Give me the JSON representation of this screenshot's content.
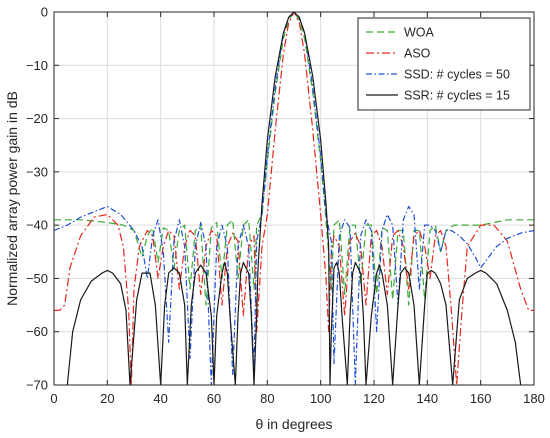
{
  "chart_data": {
    "type": "line",
    "xlabel": "θ in degrees",
    "ylabel": "Normalized array power gain in dB",
    "xlim": [
      0,
      180
    ],
    "ylim": [
      -70,
      0
    ],
    "xticks": [
      0,
      20,
      40,
      60,
      80,
      100,
      120,
      140,
      160,
      180
    ],
    "yticks": [
      0,
      -10,
      -20,
      -30,
      -40,
      -50,
      -60,
      -70
    ],
    "grid": true,
    "legend_position": "top-right",
    "series": [
      {
        "name": "WOA",
        "color": "#3aaa35",
        "dash": "dashed",
        "x": [
          0,
          10,
          20,
          26,
          30,
          33,
          35,
          37,
          39,
          41,
          43,
          45,
          47,
          49,
          51,
          53,
          55,
          57,
          59,
          61,
          63,
          65,
          67,
          69,
          71,
          73,
          75,
          76,
          78,
          80,
          83,
          86,
          88,
          90,
          92,
          94,
          97,
          100,
          102,
          104,
          105,
          107,
          109,
          111,
          113,
          115,
          117,
          119,
          121,
          123,
          125,
          127,
          129,
          131,
          133,
          135,
          137,
          139,
          141,
          143,
          145,
          147,
          150,
          154,
          160,
          170,
          180
        ],
        "y": [
          -39,
          -39,
          -39.5,
          -40,
          -41,
          -46,
          -42,
          -40.5,
          -47,
          -40.5,
          -41,
          -48,
          -41,
          -40,
          -52,
          -41,
          -40,
          -55,
          -40.5,
          -39.5,
          -50,
          -40,
          -39,
          -50,
          -40,
          -39,
          -52,
          -40,
          -38,
          -28,
          -15,
          -5,
          -1.5,
          0,
          -1.5,
          -5,
          -15,
          -28,
          -39,
          -52,
          -40,
          -39,
          -53,
          -40,
          -40,
          -51,
          -40,
          -40,
          -53,
          -40.5,
          -41,
          -54,
          -41,
          -41,
          -55,
          -41,
          -41,
          -54,
          -41,
          -40,
          -45,
          -41,
          -40,
          -40,
          -40,
          -39,
          -39
        ]
      },
      {
        "name": "ASO",
        "color": "#e6261f",
        "dash": "dashdot",
        "x": [
          0,
          2,
          4,
          6,
          10,
          15,
          20,
          24,
          26,
          28,
          29,
          30,
          32,
          35,
          37,
          39,
          41,
          43,
          45,
          47,
          49,
          51,
          53,
          55,
          57,
          59,
          61,
          63,
          65,
          67,
          69,
          71,
          73,
          75,
          76,
          78,
          80,
          83,
          86,
          88,
          90,
          92,
          94,
          97,
          100,
          102,
          103,
          104,
          105,
          107,
          109,
          111,
          113,
          115,
          117,
          119,
          121,
          123,
          125,
          127,
          129,
          131,
          133,
          135,
          137,
          139,
          141,
          143,
          145,
          147,
          149,
          151,
          153,
          155,
          160,
          165,
          170,
          175,
          178,
          180
        ],
        "y": [
          -56,
          -56,
          -55,
          -48,
          -42,
          -38.5,
          -38,
          -40,
          -44,
          -56,
          -70,
          -52,
          -44,
          -41,
          -42,
          -50,
          -44,
          -41,
          -42,
          -52,
          -44,
          -41,
          -42,
          -53,
          -44,
          -41,
          -42,
          -55,
          -44,
          -41.5,
          -43,
          -57,
          -44,
          -42,
          -60,
          -44,
          -38,
          -22,
          -8,
          -2,
          0,
          -2,
          -8,
          -22,
          -38,
          -50,
          -60,
          -45,
          -42,
          -44,
          -57,
          -43,
          -41.5,
          -44,
          -55,
          -42,
          -41,
          -44,
          -53,
          -42,
          -41,
          -44,
          -52,
          -42,
          -41,
          -44,
          -50,
          -42,
          -41,
          -44,
          -56,
          -70,
          -56,
          -44,
          -40,
          -40,
          -43,
          -52,
          -56,
          -56
        ]
      },
      {
        "name": "SSD: # cycles = 50",
        "color": "#1f4fd8",
        "dash": "dashdotdense",
        "x": [
          0,
          5,
          10,
          15,
          20,
          25,
          30,
          33,
          35,
          37,
          39,
          41,
          43,
          45,
          47,
          49,
          51,
          53,
          55,
          57,
          59,
          61,
          63,
          65,
          67,
          69,
          71,
          73,
          75,
          76,
          78,
          80,
          83,
          86,
          88,
          90,
          92,
          94,
          97,
          100,
          102,
          104,
          105,
          107,
          109,
          111,
          113,
          115,
          117,
          119,
          121,
          123,
          125,
          127,
          129,
          131,
          133,
          135,
          137,
          139,
          141,
          143,
          145,
          147,
          149,
          152,
          155,
          158,
          160,
          163,
          166,
          170,
          175,
          180
        ],
        "y": [
          -41,
          -40,
          -38.5,
          -37.5,
          -36.5,
          -38,
          -41,
          -44,
          -50,
          -42,
          -39,
          -45,
          -62,
          -43,
          -39,
          -44,
          -65,
          -44,
          -39.5,
          -44,
          -70,
          -44,
          -40,
          -44,
          -68,
          -44,
          -40,
          -44,
          -67,
          -43,
          -38,
          -27,
          -14,
          -4,
          -1,
          0,
          -1,
          -4,
          -14,
          -27,
          -38,
          -43,
          -66,
          -42,
          -39,
          -40.5,
          -70,
          -42,
          -39,
          -41,
          -60,
          -41,
          -38,
          -40,
          -55,
          -39,
          -36.5,
          -38,
          -52,
          -40,
          -40,
          -41,
          -45,
          -41,
          -41,
          -42,
          -43.5,
          -46,
          -48,
          -46,
          -44,
          -42.5,
          -41.5,
          -41
        ]
      },
      {
        "name": "SSR: # cycles = 15",
        "color": "#1a1a1a",
        "dash": "solid",
        "x": [
          5,
          7,
          10,
          14,
          18,
          20,
          22,
          25,
          27,
          28.5,
          31,
          33,
          36,
          38,
          40,
          41.5,
          43,
          45,
          47,
          49,
          50,
          51.5,
          53,
          55,
          57,
          59,
          60,
          61,
          63,
          64,
          65,
          66,
          68,
          69,
          70,
          71,
          73,
          74,
          75,
          76,
          76.5,
          77,
          78,
          80,
          83,
          86,
          88,
          90,
          92,
          94,
          97,
          100,
          102,
          103,
          103.5,
          104,
          105,
          106,
          107,
          108,
          110,
          111,
          112,
          113,
          115,
          116,
          117,
          119,
          121,
          122,
          123,
          125,
          127,
          129,
          130,
          131.5,
          133,
          135,
          137,
          139,
          140,
          141.5,
          143,
          145,
          147,
          149.5,
          152,
          155,
          158,
          160,
          162,
          166,
          170,
          173,
          175
        ],
        "y": [
          -70,
          -60,
          -54,
          -50.5,
          -49,
          -48.5,
          -49,
          -51,
          -56,
          -70,
          -54,
          -49,
          -49,
          -55,
          -70,
          -55,
          -49,
          -48,
          -49,
          -55,
          -70,
          -55,
          -49,
          -47.5,
          -49,
          -57,
          -70,
          -57,
          -49,
          -47,
          -49,
          -57,
          -70,
          -57,
          -49,
          -47,
          -49,
          -57,
          -70,
          -57,
          -48,
          -44,
          -36,
          -24,
          -12,
          -4,
          -1,
          0,
          -1,
          -4,
          -12,
          -24,
          -36,
          -44,
          -70,
          -60,
          -48,
          -47,
          -49,
          -57,
          -70,
          -57,
          -49,
          -47,
          -49,
          -57,
          -70,
          -57,
          -49,
          -47.5,
          -49,
          -55,
          -70,
          -55,
          -49,
          -48,
          -49,
          -55,
          -70,
          -55,
          -49,
          -48.5,
          -49,
          -51,
          -55,
          -70,
          -54,
          -50,
          -49,
          -48.5,
          -49,
          -51,
          -56,
          -62,
          -70
        ]
      }
    ]
  }
}
